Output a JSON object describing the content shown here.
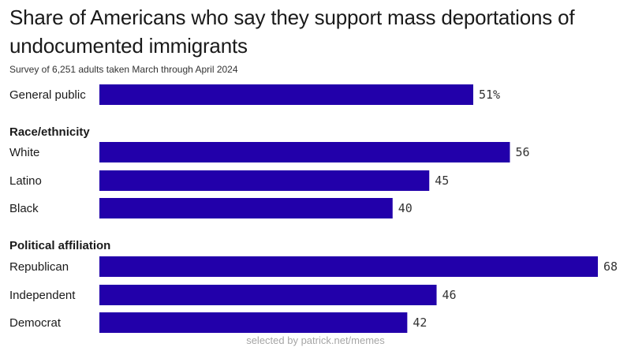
{
  "chart_data": {
    "type": "bar",
    "orientation": "horizontal",
    "title": "Share of Americans who say they support mass deportations of undocumented immigrants",
    "subtitle": "Survey of 6,251 adults taken March through April 2024",
    "xlim": [
      0,
      68
    ],
    "grid": false,
    "legend": "none",
    "bar_color": "#2200aa",
    "rows": [
      {
        "kind": "bar",
        "label": "General public",
        "value": 51,
        "value_label": "51%"
      },
      {
        "kind": "group",
        "label": "Race/ethnicity"
      },
      {
        "kind": "bar",
        "label": "White",
        "value": 56,
        "value_label": "56"
      },
      {
        "kind": "bar",
        "label": "Latino",
        "value": 45,
        "value_label": "45"
      },
      {
        "kind": "bar",
        "label": "Black",
        "value": 40,
        "value_label": "40"
      },
      {
        "kind": "group",
        "label": "Political affiliation"
      },
      {
        "kind": "bar",
        "label": "Republican",
        "value": 68,
        "value_label": "68"
      },
      {
        "kind": "bar",
        "label": "Independent",
        "value": 46,
        "value_label": "46"
      },
      {
        "kind": "bar",
        "label": "Democrat",
        "value": 42,
        "value_label": "42"
      }
    ]
  },
  "footer": {
    "text": "selected by patrick.net/memes"
  }
}
